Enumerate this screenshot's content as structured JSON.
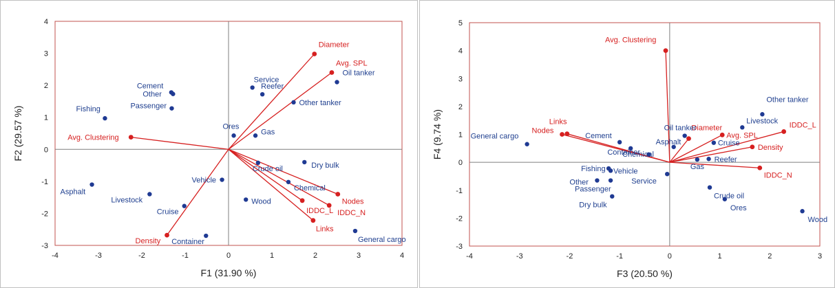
{
  "colors": {
    "observation": "#1f3a93",
    "observation_text": "#1f3f8f",
    "variable": "#d62020",
    "frame": "#c0504d",
    "zero_line": "#7f7f7f"
  },
  "chart_data": [
    {
      "type": "scatter",
      "subtype": "pca-biplot",
      "title": "",
      "xlabel": "F1 (31.90 %)",
      "ylabel": "F2 (29.57 %)",
      "xlim": [
        -4,
        4
      ],
      "ylim": [
        -3,
        4
      ],
      "xticks": [
        "-4",
        "-3",
        "-2",
        "-1",
        "0",
        "1",
        "2",
        "3",
        "4"
      ],
      "yticks": [
        "-3",
        "-2",
        "-1",
        "0",
        "1",
        "2",
        "3",
        "4"
      ],
      "grid": false,
      "series": [
        {
          "name": "",
          "kind": "observations",
          "points": [
            {
              "label": "Fishing",
              "x": -2.85,
              "y": 0.97
            },
            {
              "label": "Cement",
              "x": -1.32,
              "y": 1.78
            },
            {
              "label": "Other",
              "x": -1.28,
              "y": 1.73
            },
            {
              "label": "Passenger",
              "x": -1.31,
              "y": 1.28
            },
            {
              "label": "Asphalt",
              "x": -3.15,
              "y": -1.1
            },
            {
              "label": "Livestock",
              "x": -1.82,
              "y": -1.4
            },
            {
              "label": "Cruise",
              "x": -1.02,
              "y": -1.77
            },
            {
              "label": "Vehicle",
              "x": -0.15,
              "y": -0.95
            },
            {
              "label": "Container",
              "x": -0.52,
              "y": -2.7
            },
            {
              "label": "Service",
              "x": 0.55,
              "y": 1.93
            },
            {
              "label": "Reefer",
              "x": 0.78,
              "y": 1.72
            },
            {
              "label": "Oil tanker",
              "x": 2.5,
              "y": 2.1
            },
            {
              "label": "Other tanker",
              "x": 1.5,
              "y": 1.47
            },
            {
              "label": "Ores",
              "x": 0.12,
              "y": 0.43
            },
            {
              "label": "Gas",
              "x": 0.62,
              "y": 0.43
            },
            {
              "label": "Crude oil",
              "x": 0.68,
              "y": -0.42
            },
            {
              "label": "Dry bulk",
              "x": 1.75,
              "y": -0.4
            },
            {
              "label": "Chemical",
              "x": 1.38,
              "y": -1.02
            },
            {
              "label": "Wood",
              "x": 0.4,
              "y": -1.57
            },
            {
              "label": "General cargo",
              "x": 2.92,
              "y": -2.55
            }
          ]
        },
        {
          "name": "",
          "kind": "variables",
          "vectors": [
            {
              "label": "Diameter",
              "x": 1.98,
              "y": 2.98
            },
            {
              "label": "Avg. SPL",
              "x": 2.38,
              "y": 2.4
            },
            {
              "label": "Avg. Clustering",
              "x": -2.25,
              "y": 0.38
            },
            {
              "label": "Nodes",
              "x": 2.52,
              "y": -1.4
            },
            {
              "label": "IDDC_N",
              "x": 2.32,
              "y": -1.75
            },
            {
              "label": "IDDC_L",
              "x": 1.7,
              "y": -1.6
            },
            {
              "label": "Links",
              "x": 1.95,
              "y": -2.22
            },
            {
              "label": "Density",
              "x": -1.42,
              "y": -2.68
            }
          ]
        }
      ]
    },
    {
      "type": "scatter",
      "subtype": "pca-biplot",
      "title": "",
      "xlabel": "F3 (20.50 %)",
      "ylabel": "F4 (9.74 %)",
      "xlim": [
        -4,
        3
      ],
      "ylim": [
        -3,
        5
      ],
      "xticks": [
        "-4",
        "-3",
        "-2",
        "-1",
        "0",
        "1",
        "2",
        "3"
      ],
      "yticks": [
        "-3",
        "-2",
        "-1",
        "0",
        "1",
        "2",
        "3",
        "4",
        "5"
      ],
      "grid": false,
      "series": [
        {
          "name": "",
          "kind": "observations",
          "points": [
            {
              "label": "General cargo",
              "x": -2.85,
              "y": 0.65
            },
            {
              "label": "Cement",
              "x": -1.0,
              "y": 0.72
            },
            {
              "label": "Chemical",
              "x": -0.78,
              "y": 0.5
            },
            {
              "label": "Container",
              "x": -0.42,
              "y": 0.28
            },
            {
              "label": "Fishing",
              "x": -1.22,
              "y": -0.22
            },
            {
              "label": "Vehicle",
              "x": -1.18,
              "y": -0.3
            },
            {
              "label": "Other",
              "x": -1.45,
              "y": -0.65
            },
            {
              "label": "Passenger",
              "x": -1.18,
              "y": -0.65
            },
            {
              "label": "Dry bulk",
              "x": -1.15,
              "y": -1.22
            },
            {
              "label": "Service",
              "x": -0.05,
              "y": -0.42
            },
            {
              "label": "Oil tanker",
              "x": 0.3,
              "y": 0.95
            },
            {
              "label": "Asphalt",
              "x": 0.08,
              "y": 0.55
            },
            {
              "label": "Gas",
              "x": 0.55,
              "y": 0.1
            },
            {
              "label": "Reefer",
              "x": 0.78,
              "y": 0.12
            },
            {
              "label": "Cruise",
              "x": 0.88,
              "y": 0.7
            },
            {
              "label": "Livestock",
              "x": 1.45,
              "y": 1.25
            },
            {
              "label": "Other tanker",
              "x": 1.85,
              "y": 1.72
            },
            {
              "label": "Crude oil",
              "x": 0.8,
              "y": -0.9
            },
            {
              "label": "Ores",
              "x": 1.1,
              "y": -1.32
            },
            {
              "label": "Wood",
              "x": 2.65,
              "y": -1.75
            }
          ]
        },
        {
          "name": "",
          "kind": "variables",
          "vectors": [
            {
              "label": "Avg. Clustering",
              "x": -0.08,
              "y": 4.0
            },
            {
              "label": "Links",
              "x": -2.05,
              "y": 1.02
            },
            {
              "label": "Nodes",
              "x": -2.15,
              "y": 1.0
            },
            {
              "label": "Diameter",
              "x": 0.38,
              "y": 0.85
            },
            {
              "label": "Avg. SPL",
              "x": 1.05,
              "y": 0.98
            },
            {
              "label": "IDDC_L",
              "x": 2.28,
              "y": 1.1
            },
            {
              "label": "Density",
              "x": 1.65,
              "y": 0.55
            },
            {
              "label": "IDDC_N",
              "x": 1.8,
              "y": -0.2
            }
          ]
        }
      ]
    }
  ]
}
